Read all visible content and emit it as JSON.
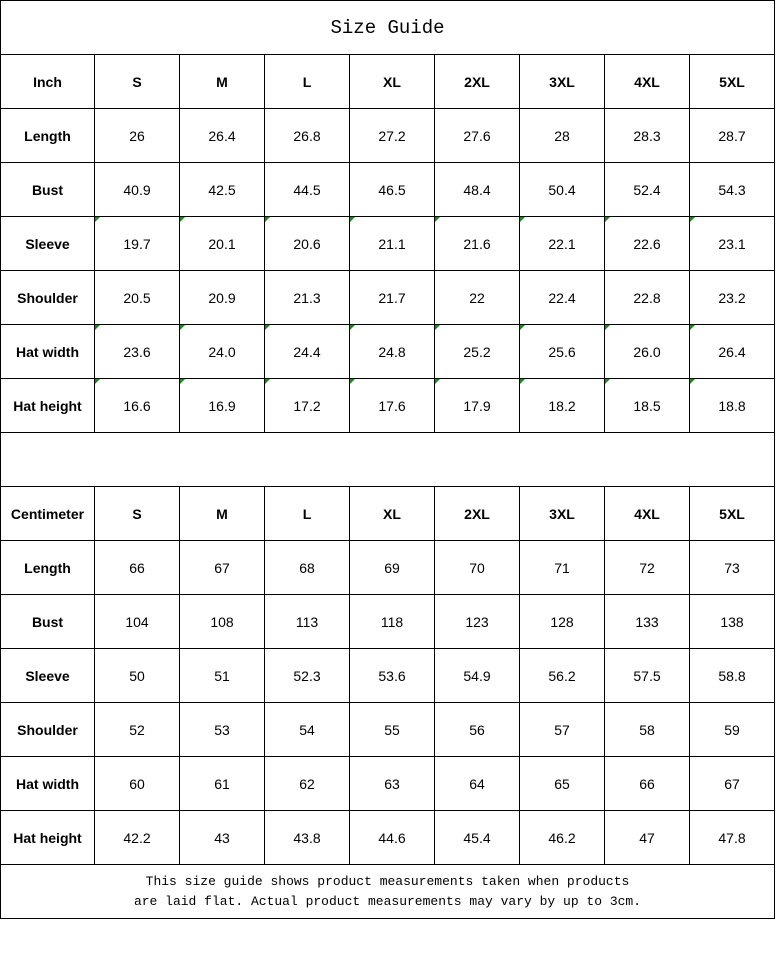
{
  "title": "Size Guide",
  "sizes": [
    "S",
    "M",
    "L",
    "XL",
    "2XL",
    "3XL",
    "4XL",
    "5XL"
  ],
  "inch_table": {
    "unit_label": "Inch",
    "rows": [
      {
        "label": "Length",
        "values": [
          "26",
          "26.4",
          "26.8",
          "27.2",
          "27.6",
          "28",
          "28.3",
          "28.7"
        ],
        "flagged": false
      },
      {
        "label": "Bust",
        "values": [
          "40.9",
          "42.5",
          "44.5",
          "46.5",
          "48.4",
          "50.4",
          "52.4",
          "54.3"
        ],
        "flagged": false
      },
      {
        "label": "Sleeve",
        "values": [
          "19.7",
          "20.1",
          "20.6",
          "21.1",
          "21.6",
          "22.1",
          "22.6",
          "23.1"
        ],
        "flagged": true
      },
      {
        "label": "Shoulder",
        "values": [
          "20.5",
          "20.9",
          "21.3",
          "21.7",
          "22",
          "22.4",
          "22.8",
          "23.2"
        ],
        "flagged": false
      },
      {
        "label": "Hat width",
        "values": [
          "23.6",
          "24.0",
          "24.4",
          "24.8",
          "25.2",
          "25.6",
          "26.0",
          "26.4"
        ],
        "flagged": true
      },
      {
        "label": "Hat height",
        "values": [
          "16.6",
          "16.9",
          "17.2",
          "17.6",
          "17.9",
          "18.2",
          "18.5",
          "18.8"
        ],
        "flagged": true
      }
    ]
  },
  "cm_table": {
    "unit_label": "Centimeter",
    "rows": [
      {
        "label": "Length",
        "values": [
          "66",
          "67",
          "68",
          "69",
          "70",
          "71",
          "72",
          "73"
        ]
      },
      {
        "label": "Bust",
        "values": [
          "104",
          "108",
          "113",
          "118",
          "123",
          "128",
          "133",
          "138"
        ]
      },
      {
        "label": "Sleeve",
        "values": [
          "50",
          "51",
          "52.3",
          "53.6",
          "54.9",
          "56.2",
          "57.5",
          "58.8"
        ]
      },
      {
        "label": "Shoulder",
        "values": [
          "52",
          "53",
          "54",
          "55",
          "56",
          "57",
          "58",
          "59"
        ]
      },
      {
        "label": "Hat width",
        "values": [
          "60",
          "61",
          "62",
          "63",
          "64",
          "65",
          "66",
          "67"
        ]
      },
      {
        "label": "Hat height",
        "values": [
          "42.2",
          "43",
          "43.8",
          "44.6",
          "45.4",
          "46.2",
          "47",
          "47.8"
        ]
      }
    ]
  },
  "note": {
    "line1": "This size guide shows product measurements taken when products",
    "line2": "are laid flat. Actual product measurements may vary by up to 3cm."
  },
  "colors": {
    "comment_flag": "#1a8a1a",
    "grid": "#000000"
  }
}
